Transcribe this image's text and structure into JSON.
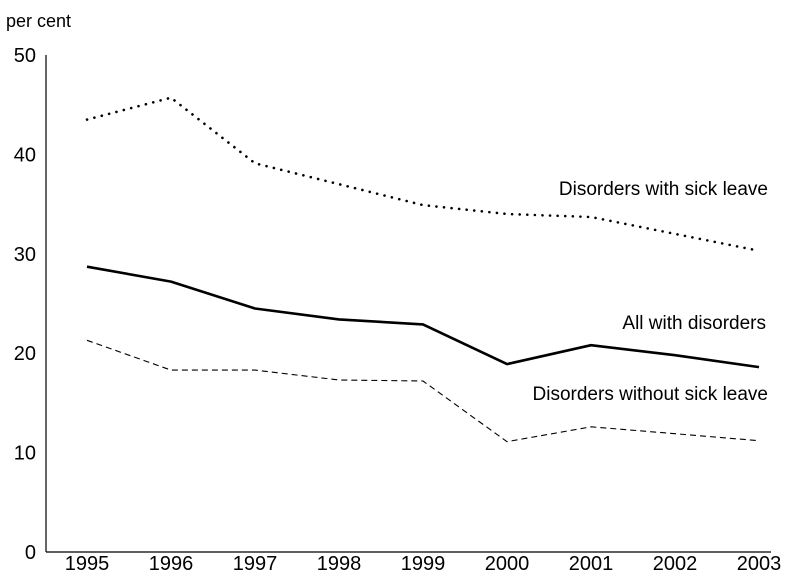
{
  "chart_data": {
    "type": "line",
    "title": "",
    "xlabel": "",
    "ylabel": "per cent",
    "ylim": [
      0,
      50
    ],
    "y_ticks": [
      "0",
      "10",
      "20",
      "30",
      "40",
      "50"
    ],
    "categories": [
      "1995",
      "1996",
      "1997",
      "1998",
      "1999",
      "2000",
      "2001",
      "2002",
      "2003"
    ],
    "grid": false,
    "legend": "none",
    "series": [
      {
        "name": "Disorders with sick leave",
        "style": "dotted",
        "color": "#000000",
        "values": [
          43.5,
          45.7,
          39.1,
          37.0,
          34.9,
          34.0,
          33.7,
          32.0,
          30.3
        ]
      },
      {
        "name": "All with disorders",
        "style": "solid",
        "color": "#000000",
        "values": [
          28.7,
          27.2,
          24.5,
          23.4,
          22.9,
          18.9,
          20.8,
          19.8,
          18.6
        ]
      },
      {
        "name": "Disorders without sick leave",
        "style": "dashed",
        "color": "#000000",
        "values": [
          21.3,
          18.3,
          18.3,
          17.3,
          17.2,
          11.1,
          12.6,
          11.9,
          11.2
        ]
      }
    ]
  }
}
